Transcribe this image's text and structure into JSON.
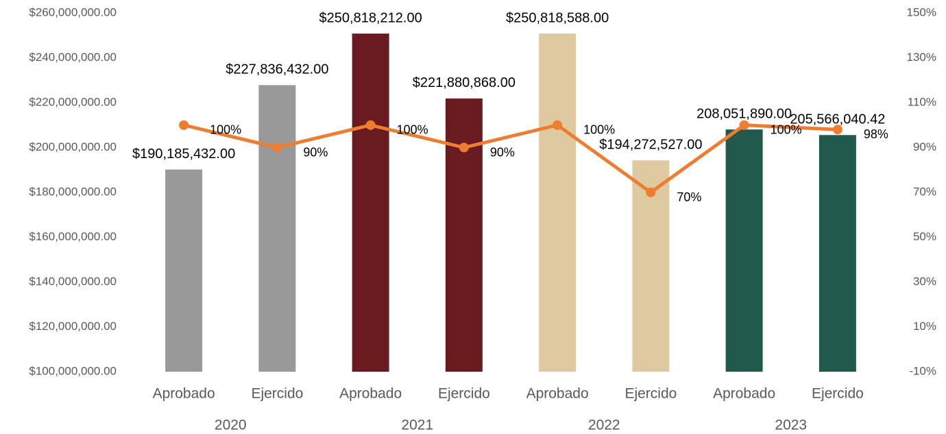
{
  "chart_data": {
    "type": "bar",
    "categories": [
      "Aprobado",
      "Ejercido",
      "Aprobado",
      "Ejercido",
      "Aprobado",
      "Ejercido",
      "Aprobado",
      "Ejercido"
    ],
    "category_groups": [
      "2020",
      "2021",
      "2022",
      "2023"
    ],
    "series": [
      {
        "type": "bar",
        "colors": [
          "#999999",
          "#999999",
          "#6a1b20",
          "#6a1b20",
          "#dfc9a0",
          "#dfc9a0",
          "#215a4c",
          "#215a4c"
        ],
        "values": [
          190185432,
          227836432,
          250818212,
          221880868,
          250818588,
          194272527,
          208051890,
          205566040.42
        ],
        "value_labels": [
          "$190,185,432.00",
          "$227,836,432.00",
          "$250,818,212.00",
          "$221,880,868.00",
          "$250,818,588.00",
          "$194,272,527.00",
          "208,051,890.00",
          "205,566,040.42"
        ]
      },
      {
        "type": "line",
        "axis": "y2",
        "color": "#ed7d31",
        "values": [
          100,
          90,
          100,
          90,
          100,
          70,
          100,
          98
        ],
        "value_labels": [
          "100%",
          "90%",
          "100%",
          "90%",
          "100%",
          "70%",
          "100%",
          "98%"
        ]
      }
    ],
    "ylim": [
      100000000,
      260000000
    ],
    "yticks": [
      {
        "value": 100000000,
        "label": "$100,000,000.00"
      },
      {
        "value": 120000000,
        "label": "$120,000,000.00"
      },
      {
        "value": 140000000,
        "label": "$140,000,000.00"
      },
      {
        "value": 160000000,
        "label": "$160,000,000.00"
      },
      {
        "value": 180000000,
        "label": "$180,000,000.00"
      },
      {
        "value": 200000000,
        "label": "$200,000,000.00"
      },
      {
        "value": 220000000,
        "label": "$220,000,000.00"
      },
      {
        "value": 240000000,
        "label": "$240,000,000.00"
      },
      {
        "value": 260000000,
        "label": "$260,000,000.00"
      }
    ],
    "y2lim": [
      -10,
      150
    ],
    "y2ticks": [
      {
        "value": -10,
        "label": "-10%"
      },
      {
        "value": 10,
        "label": "10%"
      },
      {
        "value": 30,
        "label": "30%"
      },
      {
        "value": 50,
        "label": "50%"
      },
      {
        "value": 70,
        "label": "70%"
      },
      {
        "value": 90,
        "label": "90%"
      },
      {
        "value": 110,
        "label": "110%"
      },
      {
        "value": 130,
        "label": "130%"
      },
      {
        "value": 150,
        "label": "150%"
      }
    ],
    "grid": false
  }
}
